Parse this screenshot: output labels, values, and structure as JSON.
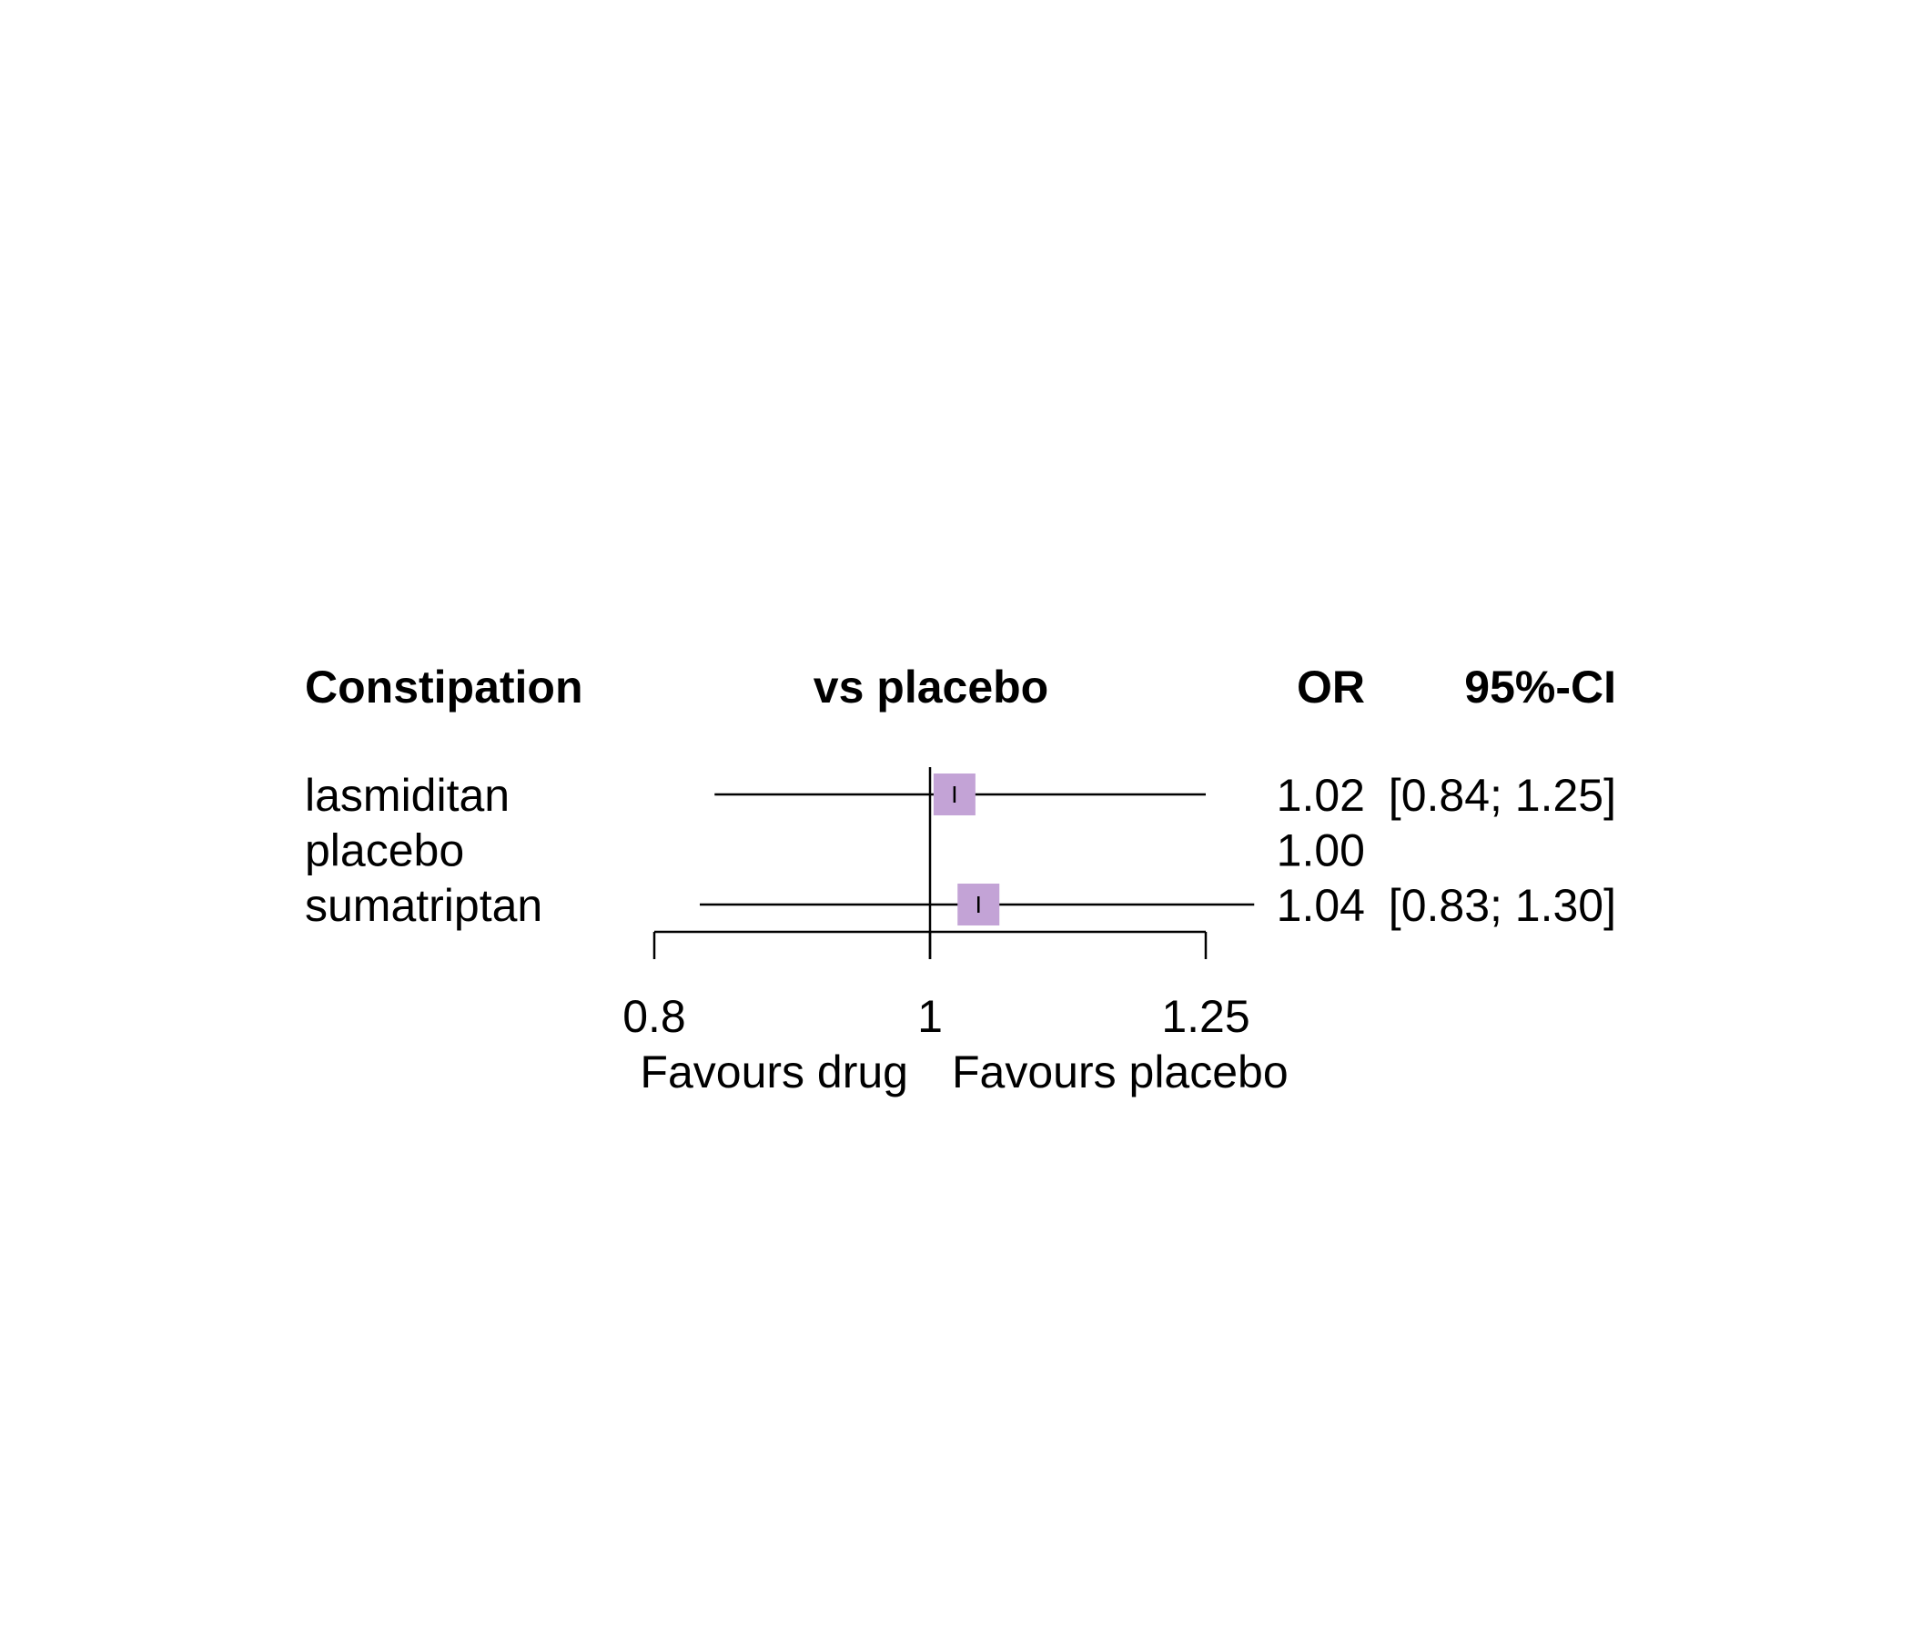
{
  "chart_data": {
    "type": "forest",
    "headers": {
      "outcome": "Constipation",
      "comparison": "vs placebo",
      "estimate": "OR",
      "interval": "95%-CI"
    },
    "rows": [
      {
        "label": "lasmiditan",
        "or": 1.02,
        "ci_low": 0.84,
        "ci_high": 1.25,
        "or_text": "1.02",
        "ci_text": "[0.84; 1.25]",
        "weight": 1.0
      },
      {
        "label": "placebo",
        "or": 1.0,
        "ci_low": null,
        "ci_high": null,
        "or_text": "1.00",
        "ci_text": "",
        "weight": 0
      },
      {
        "label": "sumatriptan",
        "or": 1.04,
        "ci_low": 0.83,
        "ci_high": 1.3,
        "or_text": "1.04",
        "ci_text": "[0.83; 1.30]",
        "weight": 1.0
      }
    ],
    "x_axis": {
      "scale": "log",
      "ticks": [
        0.8,
        1,
        1.25
      ],
      "tick_labels": [
        "0.8",
        "1",
        "1.25"
      ],
      "reference_line": 1,
      "favours_left": "Favours drug",
      "favours_right": "Favours placebo"
    },
    "colors": {
      "box": "#c3a3d6",
      "line": "#000000"
    }
  }
}
